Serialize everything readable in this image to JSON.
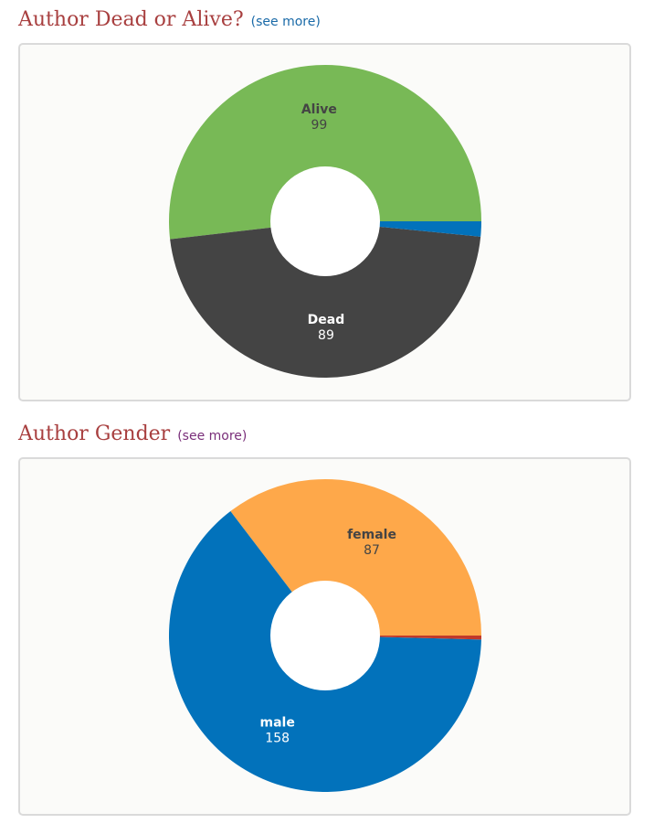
{
  "sections": [
    {
      "title": "Author Dead or Alive?",
      "see_more": "(see more)",
      "see_more_color": "#1a6aa8"
    },
    {
      "title": "Author Gender",
      "see_more": "(see more)",
      "see_more_color": "#7a2f7a"
    }
  ],
  "chart_data": [
    {
      "type": "pie",
      "variant": "donut",
      "title": "Author Dead or Alive?",
      "slices": [
        {
          "label": "Alive",
          "value": 99,
          "color": "#78b956",
          "label_color": "#444444",
          "show_label": true
        },
        {
          "label": "Dead",
          "value": 89,
          "color": "#444444",
          "label_color": "#ffffff",
          "show_label": true
        },
        {
          "label": "",
          "value": 3,
          "color": "#0272bb",
          "label_color": "#ffffff",
          "show_label": false
        }
      ]
    },
    {
      "type": "pie",
      "variant": "donut",
      "title": "Author Gender",
      "slices": [
        {
          "label": "female",
          "value": 87,
          "color": "#fea84a",
          "label_color": "#444444",
          "show_label": true
        },
        {
          "label": "male",
          "value": 158,
          "color": "#0272bb",
          "label_color": "#ffffff",
          "show_label": true
        },
        {
          "label": "",
          "value": 1,
          "color": "#c0392b",
          "label_color": "#ffffff",
          "show_label": false
        }
      ]
    }
  ]
}
